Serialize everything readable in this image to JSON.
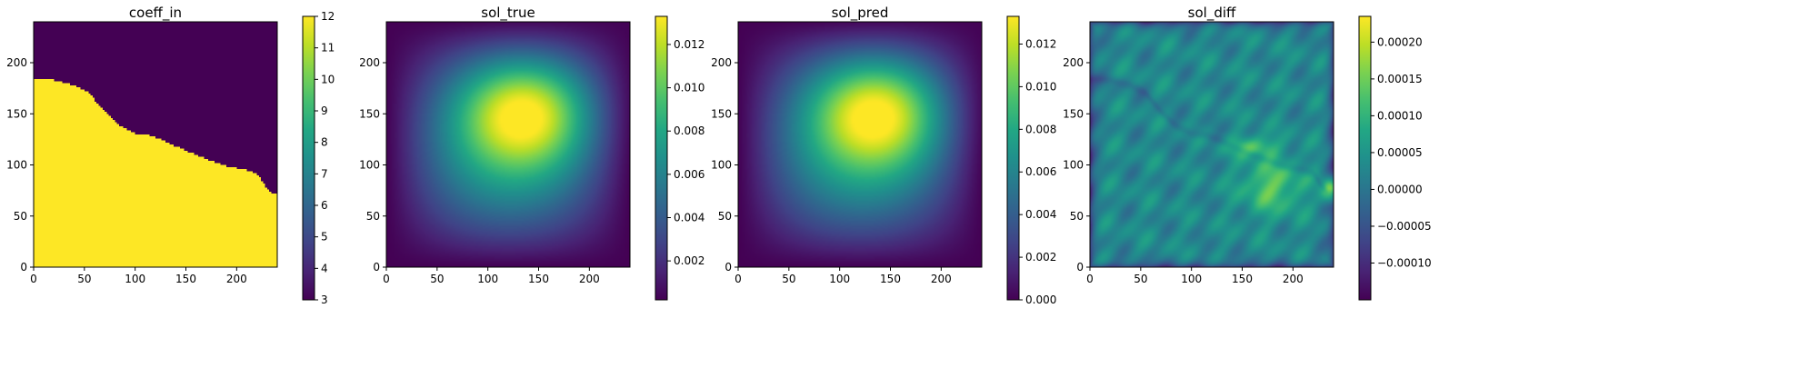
{
  "chart_data": [
    {
      "type": "heatmap",
      "title": "coeff_in",
      "x_ticks": [
        0,
        50,
        100,
        150,
        200
      ],
      "y_ticks": [
        0,
        50,
        100,
        150,
        200
      ],
      "xlim": [
        0,
        240
      ],
      "ylim": [
        0,
        240
      ],
      "colormap": "viridis",
      "colorbar": {
        "min": 3,
        "max": 12,
        "ticks": [
          "3",
          "4",
          "5",
          "6",
          "7",
          "8",
          "9",
          "10",
          "11",
          "12"
        ]
      },
      "field": {
        "kind": "two-phase",
        "low_value": 3,
        "high_value": 12,
        "boundary_y_at_x": [
          [
            0,
            184
          ],
          [
            10,
            184
          ],
          [
            20,
            183
          ],
          [
            40,
            178
          ],
          [
            55,
            170
          ],
          [
            70,
            152
          ],
          [
            85,
            138
          ],
          [
            100,
            131
          ],
          [
            115,
            129
          ],
          [
            130,
            123
          ],
          [
            150,
            114
          ],
          [
            170,
            106
          ],
          [
            190,
            99
          ],
          [
            210,
            95
          ],
          [
            220,
            92
          ],
          [
            228,
            80
          ],
          [
            234,
            73
          ],
          [
            240,
            72
          ]
        ]
      }
    },
    {
      "type": "heatmap",
      "title": "sol_true",
      "x_ticks": [
        0,
        50,
        100,
        150,
        200
      ],
      "y_ticks": [
        0,
        50,
        100,
        150,
        200
      ],
      "xlim": [
        0,
        240
      ],
      "ylim": [
        0,
        240
      ],
      "colormap": "viridis",
      "colorbar": {
        "min": 0.0002,
        "max": 0.0133,
        "ticks": [
          "0.002",
          "0.004",
          "0.006",
          "0.008",
          "0.010",
          "0.012"
        ]
      },
      "field": {
        "kind": "smooth-peak",
        "peak_x": 145,
        "peak_y": 160,
        "peak_value": 0.0133,
        "boundary_value": 0.0002
      }
    },
    {
      "type": "heatmap",
      "title": "sol_pred",
      "x_ticks": [
        0,
        50,
        100,
        150,
        200
      ],
      "y_ticks": [
        0,
        50,
        100,
        150,
        200
      ],
      "xlim": [
        0,
        240
      ],
      "ylim": [
        0,
        240
      ],
      "colormap": "viridis",
      "colorbar": {
        "min": 0.0,
        "max": 0.0133,
        "ticks": [
          "0.000",
          "0.002",
          "0.004",
          "0.006",
          "0.008",
          "0.010",
          "0.012"
        ]
      },
      "field": {
        "kind": "smooth-peak",
        "peak_x": 145,
        "peak_y": 160,
        "peak_value": 0.0133,
        "boundary_value": 0.0
      }
    },
    {
      "type": "heatmap",
      "title": "sol_diff",
      "x_ticks": [
        0,
        50,
        100,
        150,
        200
      ],
      "y_ticks": [
        0,
        50,
        100,
        150,
        200
      ],
      "xlim": [
        0,
        240
      ],
      "ylim": [
        0,
        240
      ],
      "colormap": "viridis",
      "colorbar": {
        "min": -0.00015,
        "max": 0.000235,
        "ticks": [
          "−0.00010",
          "−0.00005",
          "0.00000",
          "0.00005",
          "0.00010",
          "0.00015",
          "0.00020"
        ]
      },
      "field": {
        "kind": "residual",
        "base_value": 3e-05,
        "interface_dip": -3e-05,
        "hotspot_x": 180,
        "hotspot_y": 80,
        "hotspot_value": 0.00015,
        "corner_value": 0.00023
      }
    }
  ]
}
